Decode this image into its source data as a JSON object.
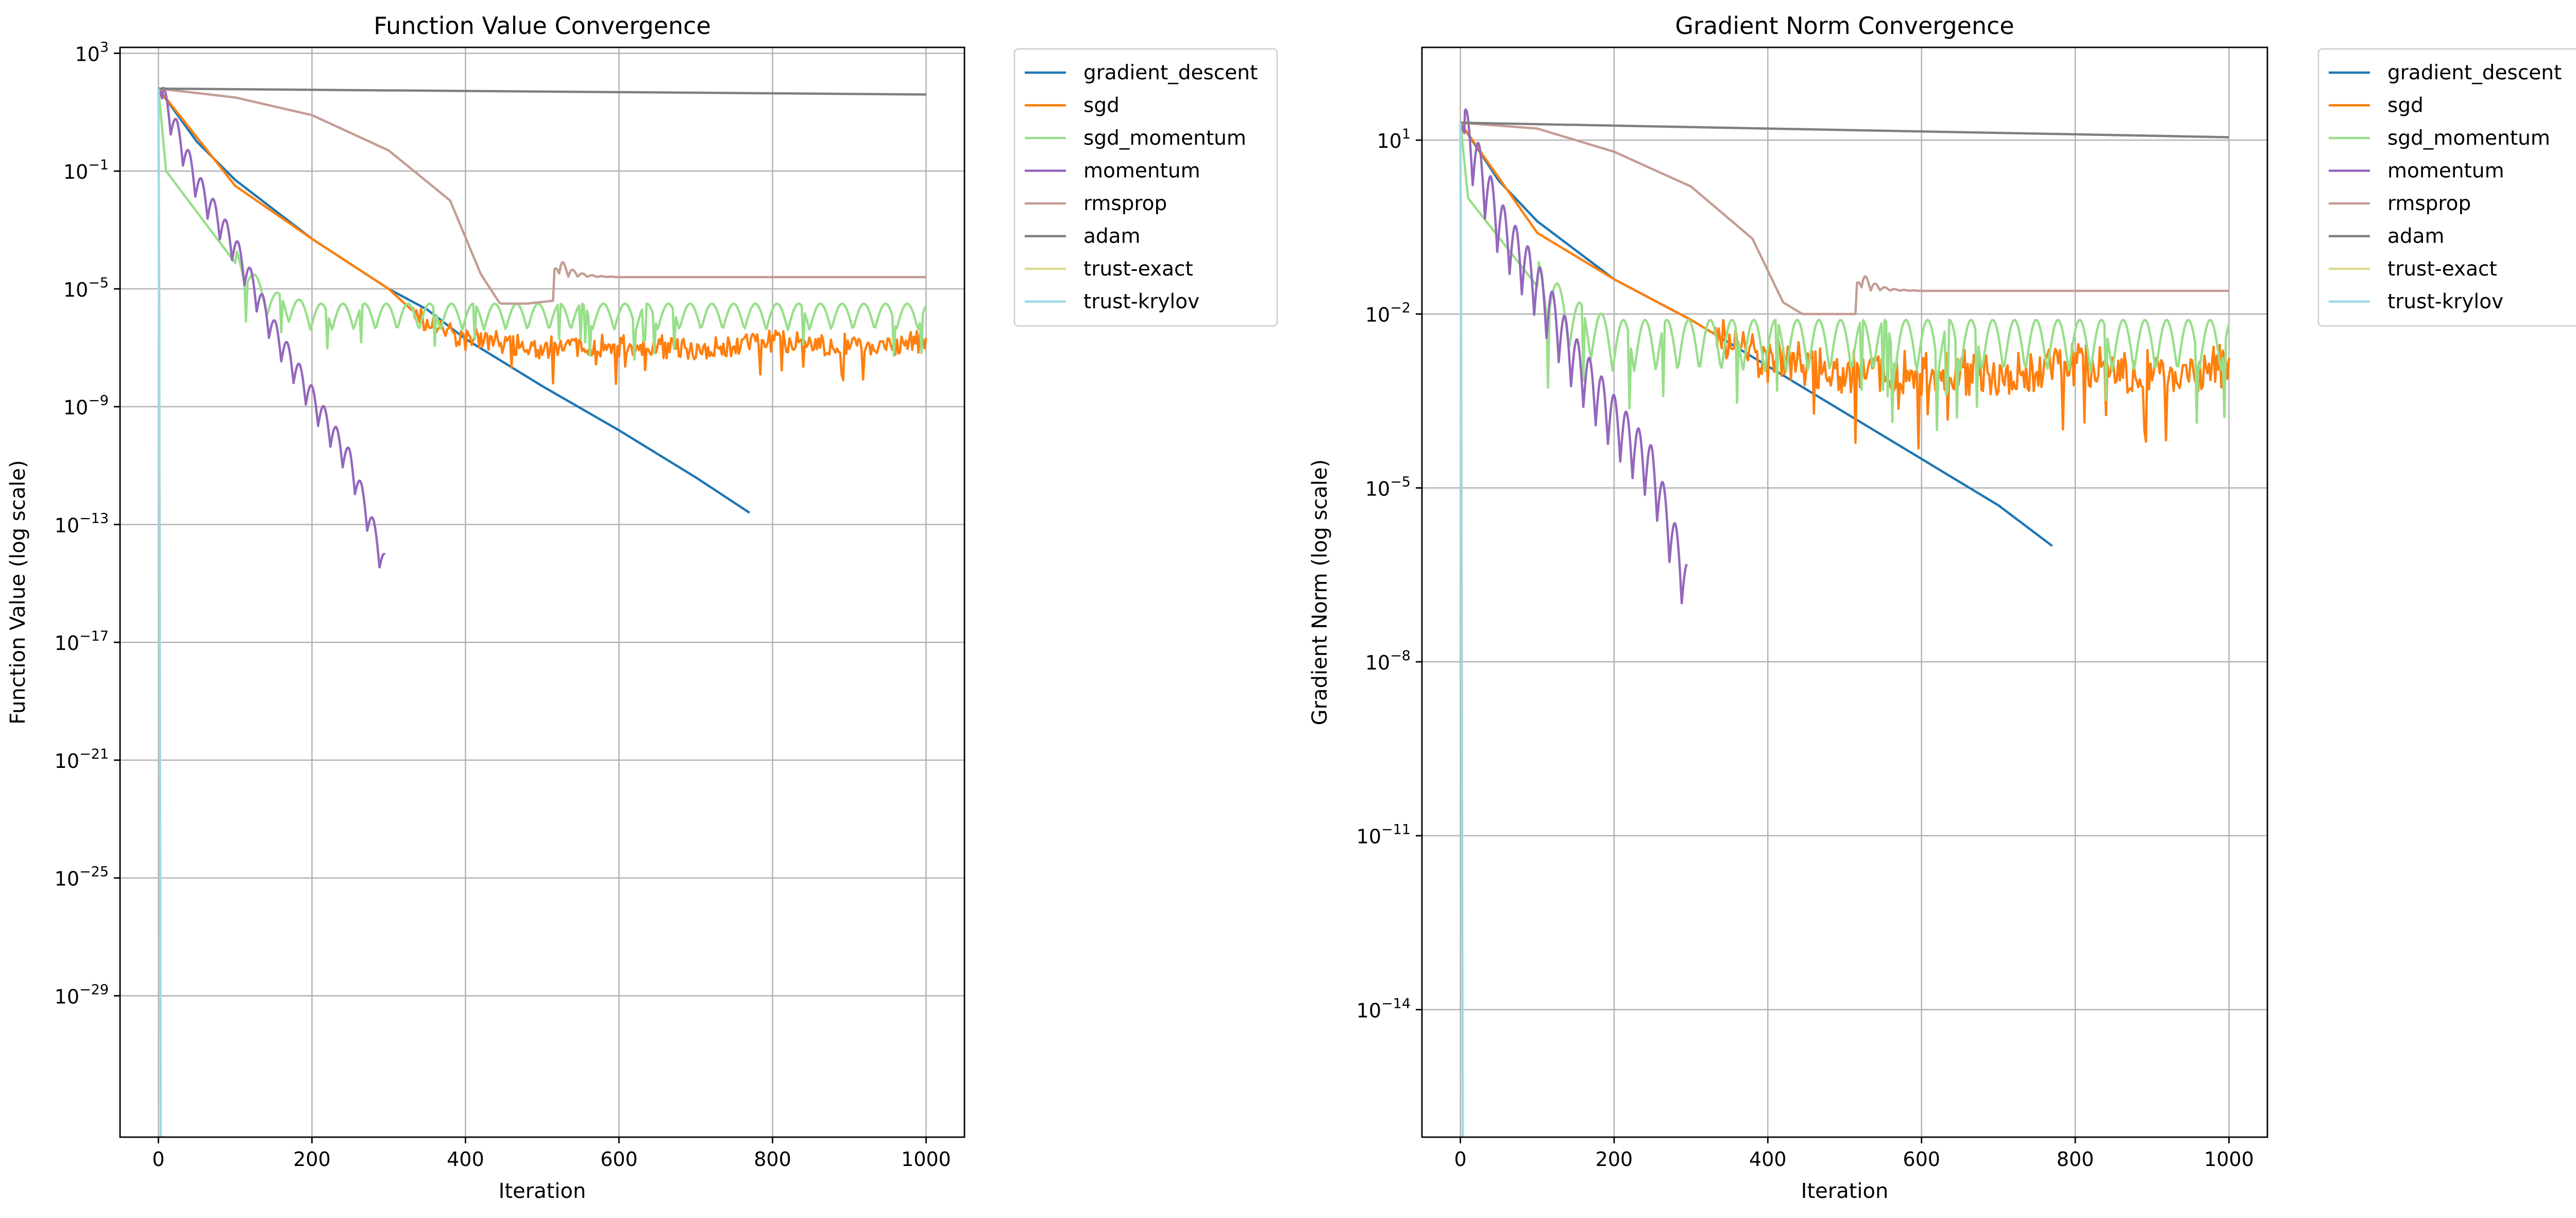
{
  "chart_data": [
    {
      "type": "line",
      "title": "Function Value Convergence",
      "xlabel": "Iteration",
      "ylabel": "Function Value (log scale)",
      "yscale": "log",
      "xlim": [
        -50,
        1050
      ],
      "ylim_exp": [
        -33.8,
        3.2
      ],
      "xticks": [
        "0",
        "200",
        "400",
        "600",
        "800",
        "1000"
      ],
      "yticks": [
        {
          "base": "10",
          "exp": "3"
        },
        {
          "base": "10",
          "exp": "−1"
        },
        {
          "base": "10",
          "exp": "−5"
        },
        {
          "base": "10",
          "exp": "−9"
        },
        {
          "base": "10",
          "exp": "−13"
        },
        {
          "base": "10",
          "exp": "−17"
        },
        {
          "base": "10",
          "exp": "−21"
        },
        {
          "base": "10",
          "exp": "−25"
        },
        {
          "base": "10",
          "exp": "−29"
        }
      ],
      "grid": true,
      "legend": "outside upper right",
      "series": [
        {
          "name": "gradient_descent",
          "color": "#1f77b4",
          "x": [
            0,
            50,
            100,
            200,
            300,
            350,
            400,
            500,
            600,
            700,
            770
          ],
          "log10_y": [
            1.8,
            0.0,
            -1.3,
            -3.3,
            -5.0,
            -5.7,
            -6.7,
            -8.3,
            -9.8,
            -11.4,
            -12.6
          ]
        },
        {
          "name": "sgd",
          "color": "#ff7f0e",
          "x": [
            0,
            100,
            200,
            300,
            350,
            400,
            500,
            600,
            700,
            800,
            900,
            1000
          ],
          "log10_y": [
            1.8,
            -1.5,
            -3.3,
            -5.0,
            -6.2,
            -6.7,
            -7.0,
            -6.9,
            -7.0,
            -6.8,
            -6.9,
            -6.8
          ]
        },
        {
          "name": "sgd_momentum",
          "color": "#98df8a",
          "x": [
            0,
            10,
            140,
            200,
            300,
            400,
            500,
            600,
            700,
            800,
            900,
            1000
          ],
          "log10_y": [
            1.8,
            -1.0,
            -5.5,
            -6.0,
            -6.0,
            -6.0,
            -6.0,
            -6.0,
            -6.0,
            -6.0,
            -6.0,
            -6.0
          ]
        },
        {
          "name": "momentum",
          "color": "#9467bd",
          "x": [
            0,
            50,
            100,
            150,
            200,
            250,
            295
          ],
          "log10_y": [
            1.8,
            -1.5,
            -3.7,
            -6.5,
            -8.8,
            -11.0,
            -14.5
          ]
        },
        {
          "name": "rmsprop",
          "color": "#c49c94",
          "x": [
            0,
            100,
            200,
            300,
            380,
            420,
            445,
            480,
            515,
            520,
            600,
            700,
            800,
            900,
            1000
          ],
          "log10_y": [
            1.8,
            1.5,
            0.9,
            -0.3,
            -2.0,
            -4.5,
            -5.5,
            -5.5,
            -5.4,
            -4.6,
            -4.6,
            -4.6,
            -4.6,
            -4.6,
            -4.6
          ]
        },
        {
          "name": "adam",
          "color": "#7f7f7f",
          "x": [
            0,
            200,
            400,
            600,
            800,
            1000
          ],
          "log10_y": [
            1.8,
            1.76,
            1.72,
            1.68,
            1.64,
            1.6
          ]
        },
        {
          "name": "trust-exact",
          "color": "#dbdb8d",
          "x": [
            0,
            1,
            2,
            3
          ],
          "log10_y": [
            1.8,
            -5.0,
            -20.0,
            -33.8
          ]
        },
        {
          "name": "trust-krylov",
          "color": "#9edae5",
          "x": [
            0,
            1,
            2,
            3
          ],
          "log10_y": [
            1.8,
            -6.0,
            -22.0,
            -33.8
          ]
        }
      ]
    },
    {
      "type": "line",
      "title": "Gradient Norm Convergence",
      "xlabel": "Iteration",
      "ylabel": "Gradient Norm (log scale)",
      "yscale": "log",
      "xlim": [
        -50,
        1050
      ],
      "ylim_exp": [
        -16.2,
        2.6
      ],
      "xticks": [
        "0",
        "200",
        "400",
        "600",
        "800",
        "1000"
      ],
      "yticks": [
        {
          "base": "10",
          "exp": "1"
        },
        {
          "base": "10",
          "exp": "−2"
        },
        {
          "base": "10",
          "exp": "−5"
        },
        {
          "base": "10",
          "exp": "−8"
        },
        {
          "base": "10",
          "exp": "−11"
        },
        {
          "base": "10",
          "exp": "−14"
        }
      ],
      "grid": true,
      "legend": "outside upper right",
      "series": [
        {
          "name": "gradient_descent",
          "color": "#1f77b4",
          "x": [
            0,
            50,
            100,
            200,
            300,
            350,
            400,
            500,
            600,
            700,
            770
          ],
          "log10_y": [
            1.3,
            0.3,
            -0.4,
            -1.4,
            -2.1,
            -2.5,
            -2.9,
            -3.7,
            -4.5,
            -5.3,
            -6.0
          ]
        },
        {
          "name": "sgd",
          "color": "#ff7f0e",
          "x": [
            0,
            100,
            200,
            300,
            350,
            400,
            500,
            600,
            700,
            800,
            900,
            1000
          ],
          "log10_y": [
            1.3,
            -0.6,
            -1.4,
            -2.1,
            -2.5,
            -2.8,
            -3.0,
            -3.0,
            -3.0,
            -2.9,
            -3.0,
            -2.9
          ]
        },
        {
          "name": "sgd_momentum",
          "color": "#98df8a",
          "x": [
            0,
            10,
            140,
            200,
            300,
            400,
            500,
            600,
            700,
            800,
            900,
            1000
          ],
          "log10_y": [
            1.3,
            0.0,
            -2.2,
            -2.6,
            -2.6,
            -2.6,
            -2.6,
            -2.6,
            -2.6,
            -2.6,
            -2.6,
            -2.6
          ]
        },
        {
          "name": "momentum",
          "color": "#9467bd",
          "x": [
            0,
            50,
            100,
            150,
            200,
            250,
            295
          ],
          "log10_y": [
            1.3,
            -0.5,
            -1.6,
            -2.9,
            -3.9,
            -4.8,
            -6.8
          ]
        },
        {
          "name": "rmsprop",
          "color": "#c49c94",
          "x": [
            0,
            100,
            200,
            300,
            380,
            420,
            445,
            480,
            515,
            520,
            600,
            700,
            800,
            900,
            1000
          ],
          "log10_y": [
            1.3,
            1.2,
            0.8,
            0.2,
            -0.7,
            -1.8,
            -2.0,
            -2.0,
            -2.0,
            -1.6,
            -1.6,
            -1.6,
            -1.6,
            -1.6,
            -1.6
          ]
        },
        {
          "name": "adam",
          "color": "#7f7f7f",
          "x": [
            0,
            200,
            400,
            600,
            800,
            1000
          ],
          "log10_y": [
            1.3,
            1.25,
            1.2,
            1.15,
            1.1,
            1.05
          ]
        },
        {
          "name": "trust-exact",
          "color": "#dbdb8d",
          "x": [
            0,
            1,
            2,
            3
          ],
          "log10_y": [
            1.3,
            -2.0,
            -9.0,
            -16.2
          ]
        },
        {
          "name": "trust-krylov",
          "color": "#9edae5",
          "x": [
            0,
            1,
            2,
            3
          ],
          "log10_y": [
            1.3,
            -3.0,
            -10.0,
            -16.2
          ]
        }
      ]
    }
  ]
}
